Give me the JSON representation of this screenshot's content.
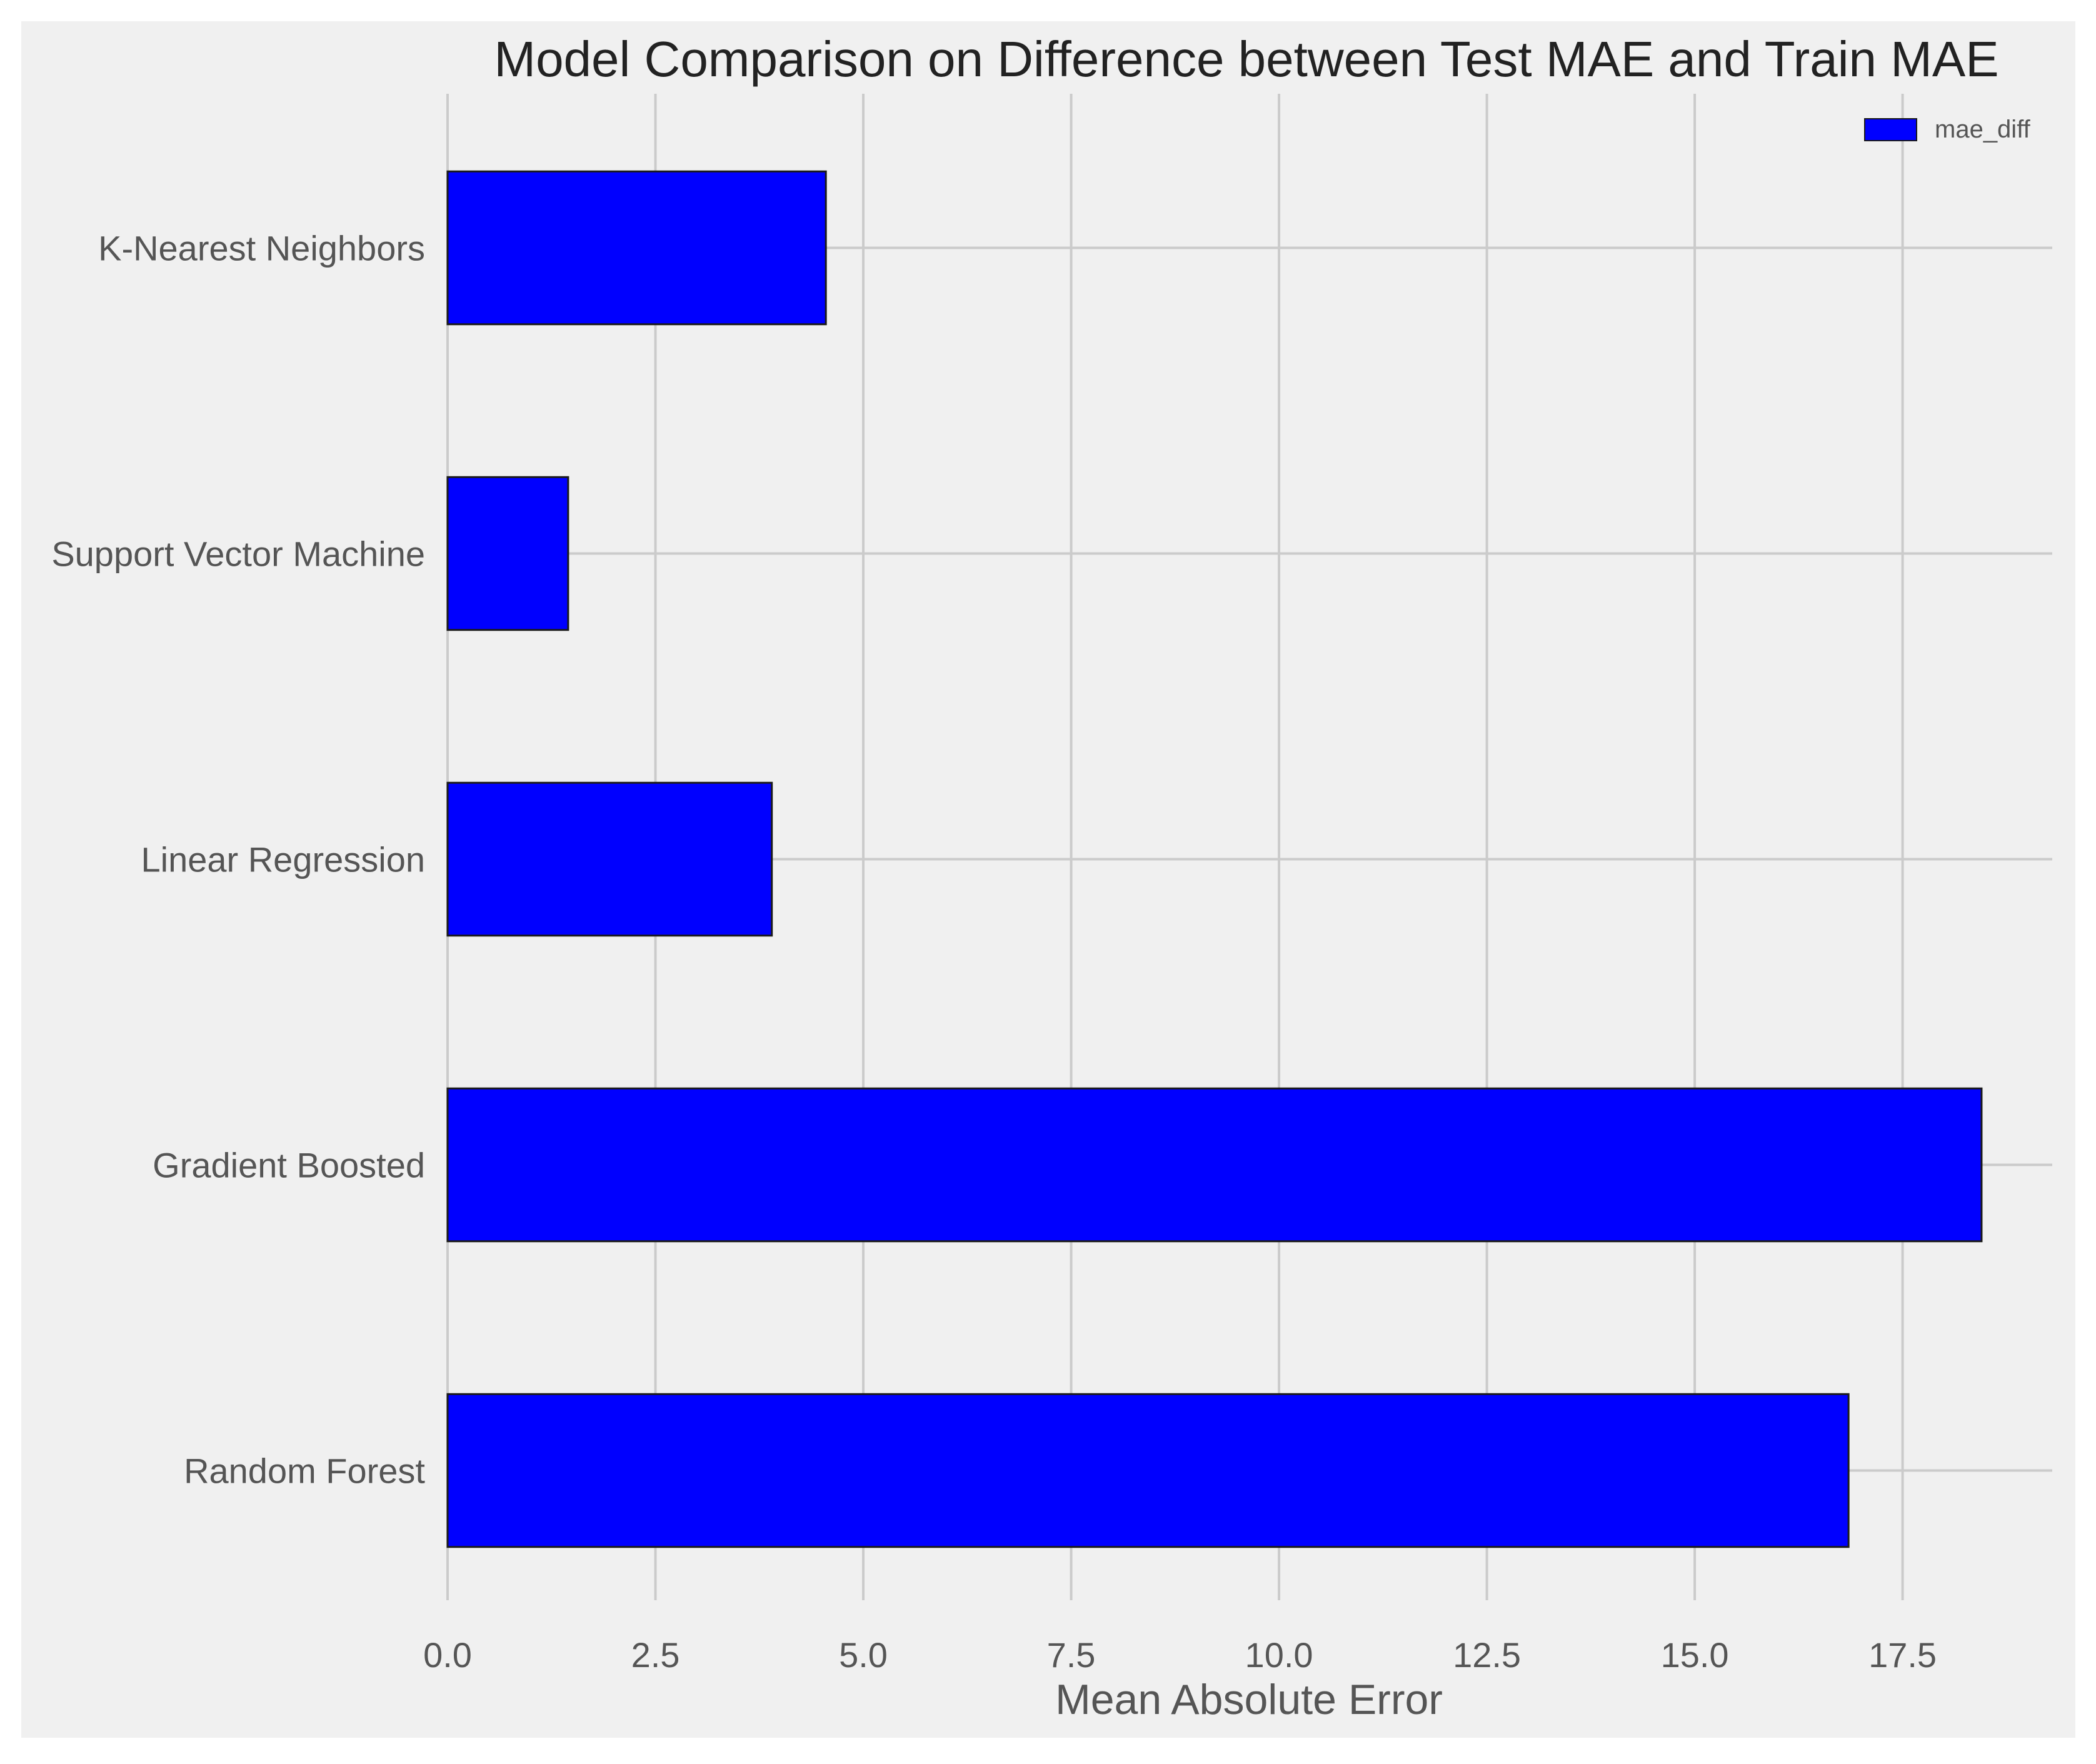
{
  "chart_data": {
    "type": "bar",
    "orientation": "horizontal",
    "title": "Model Comparison on Difference between Test MAE and Train MAE",
    "xlabel": "Mean Absolute Error",
    "ylabel": "",
    "categories": [
      "K-Nearest Neighbors",
      "Support Vector Machine",
      "Linear Regression",
      "Gradient Boosted",
      "Random Forest"
    ],
    "series": [
      {
        "name": "mae_diff",
        "values": [
          4.55,
          1.45,
          3.9,
          18.45,
          16.85
        ],
        "color": "#0000ff"
      }
    ],
    "xlim": [
      0,
      19.3
    ],
    "xticks": [
      0.0,
      2.5,
      5.0,
      7.5,
      10.0,
      12.5,
      15.0,
      17.5
    ],
    "xtick_labels": [
      "0.0",
      "2.5",
      "5.0",
      "7.5",
      "10.0",
      "12.5",
      "15.0",
      "17.5"
    ],
    "grid": true,
    "legend_position": "top-right",
    "colors": {
      "plot_background": "#f0f0f0",
      "grid": "#cbcbcb",
      "bar": "#0000ff",
      "bar_edge": "#1a1a1a",
      "text": "#555555",
      "title": "#222222"
    }
  }
}
